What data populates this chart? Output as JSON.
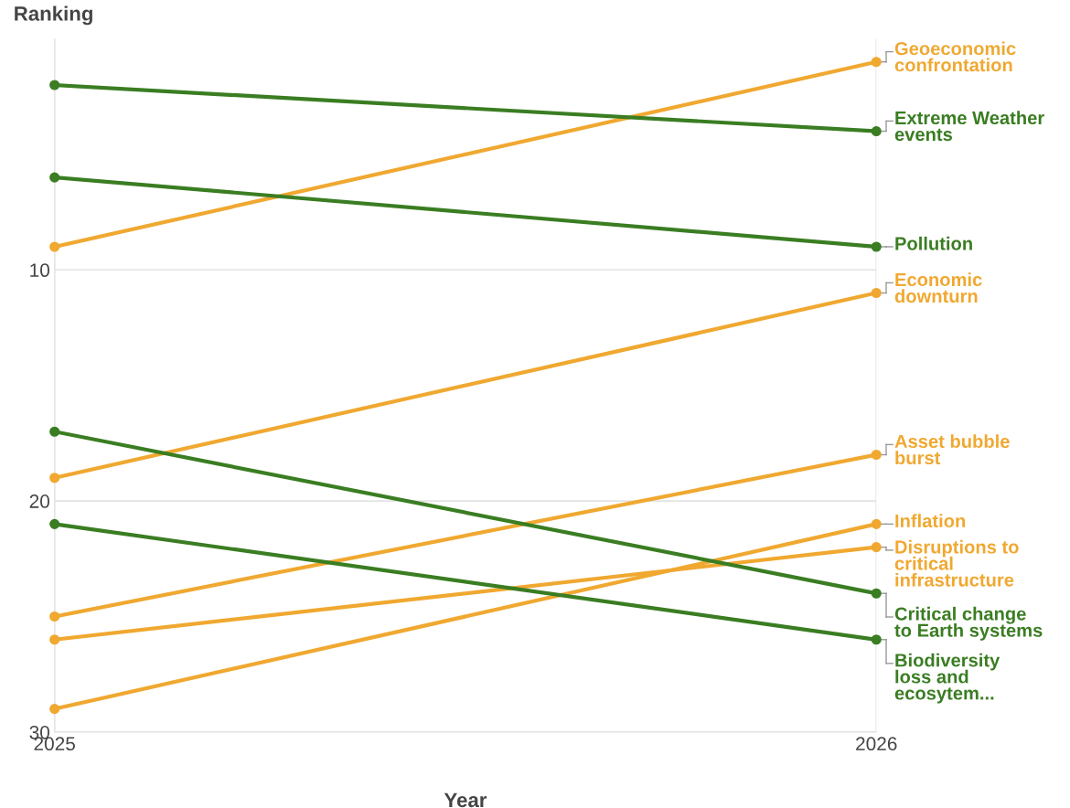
{
  "chart_data": {
    "type": "line",
    "ylabel": "Ranking",
    "xlabel": "Year",
    "x": [
      2025,
      2026
    ],
    "xlim": [
      2025,
      2026
    ],
    "xticks": [
      2025,
      2026
    ],
    "ylim": [
      30,
      0
    ],
    "yticks": [
      10,
      20,
      30
    ],
    "grid": true,
    "marker": "circle",
    "line_style": "solid",
    "legend": false,
    "series": [
      {
        "name": "Geoeconomic confrontation",
        "color": "#f0a830",
        "values": [
          9,
          1
        ]
      },
      {
        "name": "Extreme Weather events",
        "color": "#3a7d22",
        "values": [
          2,
          4
        ]
      },
      {
        "name": "Pollution",
        "color": "#3a7d22",
        "values": [
          6,
          9
        ]
      },
      {
        "name": "Economic downturn",
        "color": "#f0a830",
        "values": [
          19,
          11
        ]
      },
      {
        "name": "Asset bubble burst",
        "color": "#f0a830",
        "values": [
          25,
          18
        ]
      },
      {
        "name": "Inflation",
        "color": "#f0a830",
        "values": [
          29,
          21
        ]
      },
      {
        "name": "Disruptions to critical infrastructure",
        "color": "#f0a830",
        "values": [
          26,
          22
        ]
      },
      {
        "name": "Critical change to Earth systems",
        "color": "#3a7d22",
        "values": [
          17,
          24
        ]
      },
      {
        "name": "Biodiversity loss and ecosytem...",
        "color": "#3a7d22",
        "values": [
          21,
          26
        ]
      }
    ]
  }
}
